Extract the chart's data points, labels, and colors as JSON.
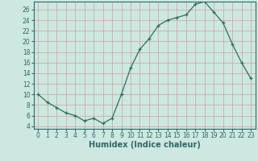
{
  "x": [
    0,
    1,
    2,
    3,
    4,
    5,
    6,
    7,
    8,
    9,
    10,
    11,
    12,
    13,
    14,
    15,
    16,
    17,
    18,
    19,
    20,
    21,
    22,
    23
  ],
  "y": [
    10,
    8.5,
    7.5,
    6.5,
    6,
    5,
    5.5,
    4.5,
    5.5,
    10,
    15,
    18.5,
    20.5,
    23,
    24,
    24.5,
    25,
    27,
    27.5,
    25.5,
    23.5,
    19.5,
    16,
    13
  ],
  "line_color": "#2d6e5e",
  "marker": "+",
  "bg_color": "#cce8e0",
  "grid_color": "#b8d8d0",
  "xlabel": "Humidex (Indice chaleur)",
  "xlim": [
    -0.5,
    23.5
  ],
  "ylim": [
    3.5,
    27.5
  ],
  "yticks": [
    4,
    6,
    8,
    10,
    12,
    14,
    16,
    18,
    20,
    22,
    24,
    26
  ],
  "xticks": [
    0,
    1,
    2,
    3,
    4,
    5,
    6,
    7,
    8,
    9,
    10,
    11,
    12,
    13,
    14,
    15,
    16,
    17,
    18,
    19,
    20,
    21,
    22,
    23
  ],
  "tick_label_fontsize": 5.5,
  "xlabel_fontsize": 7.0,
  "spine_color": "#336666",
  "tick_color": "#336666"
}
